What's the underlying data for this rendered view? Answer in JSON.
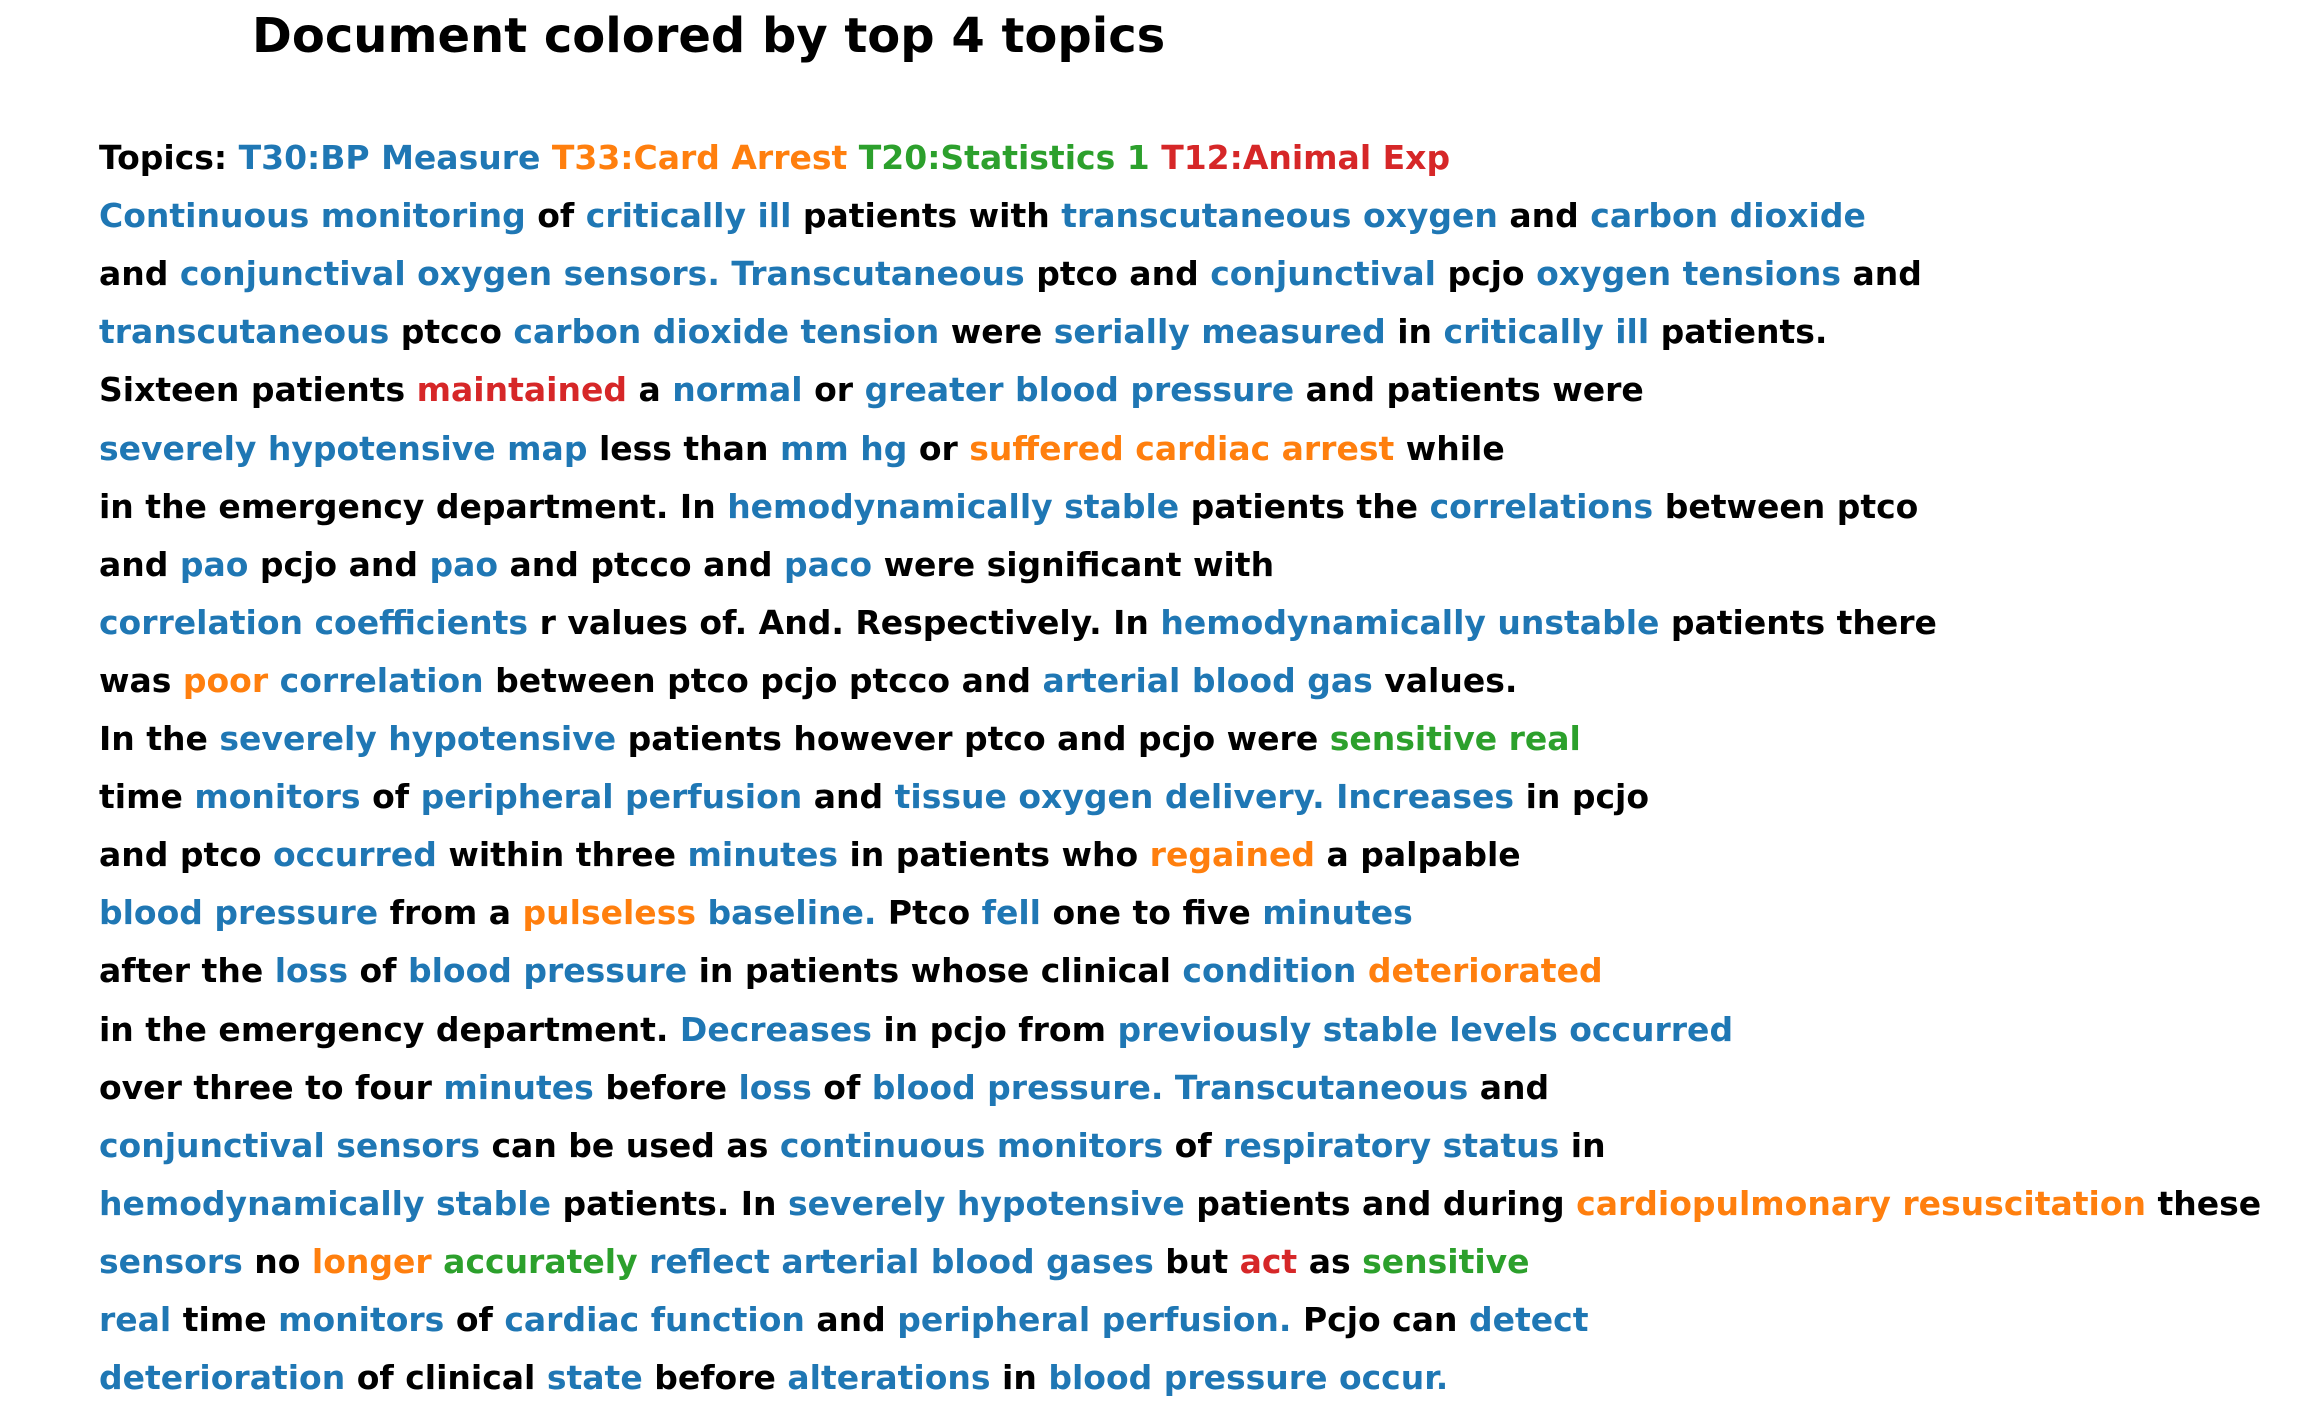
{
  "title": "Document colored by top 4 topics",
  "colors": {
    "none": "#000000",
    "T30": "#1f77b4",
    "T33": "#ff7f0e",
    "T20": "#2ca02c",
    "T12": "#d62728"
  },
  "lines": [
    [
      [
        "Topics: ",
        "none"
      ],
      [
        "T30:BP Measure",
        "T30"
      ],
      [
        " ",
        "none"
      ],
      [
        "T33:Card Arrest",
        "T33"
      ],
      [
        " ",
        "none"
      ],
      [
        "T20:Statistics 1",
        "T20"
      ],
      [
        " ",
        "none"
      ],
      [
        "T12:Animal Exp",
        "T12"
      ]
    ],
    [
      [
        "Continuous monitoring",
        "T30"
      ],
      [
        " of ",
        "none"
      ],
      [
        "critically ill",
        "T30"
      ],
      [
        " patients with ",
        "none"
      ],
      [
        "transcutaneous oxygen",
        "T30"
      ],
      [
        " and ",
        "none"
      ],
      [
        "carbon dioxide",
        "T30"
      ]
    ],
    [
      [
        "and ",
        "none"
      ],
      [
        "conjunctival oxygen sensors. Transcutaneous",
        "T30"
      ],
      [
        " ptco and ",
        "none"
      ],
      [
        "conjunctival",
        "T30"
      ],
      [
        " pcjo ",
        "none"
      ],
      [
        "oxygen tensions",
        "T30"
      ],
      [
        " and",
        "none"
      ]
    ],
    [
      [
        "transcutaneous",
        "T30"
      ],
      [
        " ptcco ",
        "none"
      ],
      [
        "carbon dioxide tension",
        "T30"
      ],
      [
        " were ",
        "none"
      ],
      [
        "serially measured",
        "T30"
      ],
      [
        " in ",
        "none"
      ],
      [
        "critically ill",
        "T30"
      ],
      [
        " patients.",
        "none"
      ]
    ],
    [
      [
        "Sixteen patients ",
        "none"
      ],
      [
        "maintained",
        "T12"
      ],
      [
        " a ",
        "none"
      ],
      [
        "normal",
        "T30"
      ],
      [
        " or ",
        "none"
      ],
      [
        "greater blood pressure",
        "T30"
      ],
      [
        " and patients were",
        "none"
      ]
    ],
    [
      [
        "severely hypotensive map",
        "T30"
      ],
      [
        " less than ",
        "none"
      ],
      [
        "mm hg",
        "T30"
      ],
      [
        " or ",
        "none"
      ],
      [
        "suffered cardiac arrest",
        "T33"
      ],
      [
        " while",
        "none"
      ]
    ],
    [
      [
        "in the emergency department. In ",
        "none"
      ],
      [
        "hemodynamically stable",
        "T30"
      ],
      [
        " patients the ",
        "none"
      ],
      [
        "correlations",
        "T30"
      ],
      [
        " between ptco",
        "none"
      ]
    ],
    [
      [
        "and ",
        "none"
      ],
      [
        "pao",
        "T30"
      ],
      [
        " pcjo and ",
        "none"
      ],
      [
        "pao",
        "T30"
      ],
      [
        " and ptcco and ",
        "none"
      ],
      [
        "paco",
        "T30"
      ],
      [
        " were significant with",
        "none"
      ]
    ],
    [
      [
        "correlation coefficients",
        "T30"
      ],
      [
        " r values of. And. Respectively. In ",
        "none"
      ],
      [
        "hemodynamically unstable",
        "T30"
      ],
      [
        " patients there",
        "none"
      ]
    ],
    [
      [
        "was ",
        "none"
      ],
      [
        "poor",
        "T33"
      ],
      [
        " ",
        "none"
      ],
      [
        "correlation",
        "T30"
      ],
      [
        " between ptco pcjo ptcco and ",
        "none"
      ],
      [
        "arterial blood gas",
        "T30"
      ],
      [
        " values.",
        "none"
      ]
    ],
    [
      [
        "In the ",
        "none"
      ],
      [
        "severely hypotensive",
        "T30"
      ],
      [
        " patients however ptco and pcjo were ",
        "none"
      ],
      [
        "sensitive real",
        "T20"
      ]
    ],
    [
      [
        "time ",
        "none"
      ],
      [
        "monitors",
        "T30"
      ],
      [
        " of ",
        "none"
      ],
      [
        "peripheral perfusion",
        "T30"
      ],
      [
        " and ",
        "none"
      ],
      [
        "tissue oxygen delivery. Increases",
        "T30"
      ],
      [
        " in pcjo",
        "none"
      ]
    ],
    [
      [
        "and ptco ",
        "none"
      ],
      [
        "occurred",
        "T30"
      ],
      [
        " within three ",
        "none"
      ],
      [
        "minutes",
        "T30"
      ],
      [
        " in patients who ",
        "none"
      ],
      [
        "regained",
        "T33"
      ],
      [
        " a palpable",
        "none"
      ]
    ],
    [
      [
        "blood pressure",
        "T30"
      ],
      [
        " from a ",
        "none"
      ],
      [
        "pulseless",
        "T33"
      ],
      [
        " ",
        "none"
      ],
      [
        "baseline.",
        "T30"
      ],
      [
        " Ptco ",
        "none"
      ],
      [
        "fell",
        "T30"
      ],
      [
        " one to five ",
        "none"
      ],
      [
        "minutes",
        "T30"
      ]
    ],
    [
      [
        "after the ",
        "none"
      ],
      [
        "loss",
        "T30"
      ],
      [
        " of ",
        "none"
      ],
      [
        "blood pressure",
        "T30"
      ],
      [
        " in patients whose clinical ",
        "none"
      ],
      [
        "condition",
        "T30"
      ],
      [
        " ",
        "none"
      ],
      [
        "deteriorated",
        "T33"
      ]
    ],
    [
      [
        "in the emergency department. ",
        "none"
      ],
      [
        "Decreases",
        "T30"
      ],
      [
        " in pcjo from ",
        "none"
      ],
      [
        "previously stable levels occurred",
        "T30"
      ]
    ],
    [
      [
        "over three to four ",
        "none"
      ],
      [
        "minutes",
        "T30"
      ],
      [
        " before ",
        "none"
      ],
      [
        "loss",
        "T30"
      ],
      [
        " of ",
        "none"
      ],
      [
        "blood pressure. Transcutaneous",
        "T30"
      ],
      [
        " and",
        "none"
      ]
    ],
    [
      [
        "conjunctival sensors",
        "T30"
      ],
      [
        " can be used as ",
        "none"
      ],
      [
        "continuous monitors",
        "T30"
      ],
      [
        " of ",
        "none"
      ],
      [
        "respiratory status",
        "T30"
      ],
      [
        " in",
        "none"
      ]
    ],
    [
      [
        "hemodynamically stable",
        "T30"
      ],
      [
        " patients. In ",
        "none"
      ],
      [
        "severely hypotensive",
        "T30"
      ],
      [
        " patients and during ",
        "none"
      ],
      [
        "cardiopulmonary resuscitation",
        "T33"
      ],
      [
        " these",
        "none"
      ]
    ],
    [
      [
        "sensors",
        "T30"
      ],
      [
        " no ",
        "none"
      ],
      [
        "longer",
        "T33"
      ],
      [
        " ",
        "none"
      ],
      [
        "accurately",
        "T20"
      ],
      [
        " ",
        "none"
      ],
      [
        "reflect arterial blood gases",
        "T30"
      ],
      [
        " but ",
        "none"
      ],
      [
        "act",
        "T12"
      ],
      [
        " as ",
        "none"
      ],
      [
        "sensitive",
        "T20"
      ]
    ],
    [
      [
        "real",
        "T30"
      ],
      [
        " time ",
        "none"
      ],
      [
        "monitors",
        "T30"
      ],
      [
        " of ",
        "none"
      ],
      [
        "cardiac function",
        "T30"
      ],
      [
        " and ",
        "none"
      ],
      [
        "peripheral perfusion.",
        "T30"
      ],
      [
        " Pcjo can ",
        "none"
      ],
      [
        "detect",
        "T30"
      ]
    ],
    [
      [
        "deterioration",
        "T30"
      ],
      [
        " of clinical ",
        "none"
      ],
      [
        "state",
        "T30"
      ],
      [
        " before ",
        "none"
      ],
      [
        "alterations",
        "T30"
      ],
      [
        " in ",
        "none"
      ],
      [
        "blood pressure occur.",
        "T30"
      ]
    ]
  ]
}
